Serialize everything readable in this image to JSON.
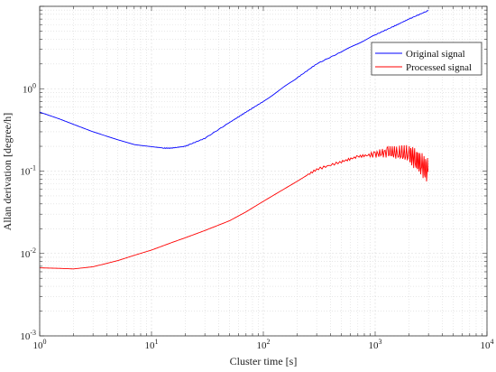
{
  "chart_data": {
    "type": "line",
    "title": "",
    "xlabel": "Cluster time [s]",
    "ylabel": "Allan derivation [degree/h]",
    "xscale": "log",
    "yscale": "log",
    "xlim": [
      1,
      10000
    ],
    "ylim": [
      0.001,
      10
    ],
    "grid": true,
    "legend_position": "top-right",
    "x_ticks": [
      {
        "value": 1,
        "base": "10",
        "exp": "0"
      },
      {
        "value": 10,
        "base": "10",
        "exp": "1"
      },
      {
        "value": 100,
        "base": "10",
        "exp": "2"
      },
      {
        "value": 1000,
        "base": "10",
        "exp": "3"
      },
      {
        "value": 10000,
        "base": "10",
        "exp": "4"
      }
    ],
    "y_ticks": [
      {
        "value": 0.001,
        "base": "10",
        "exp": "-3"
      },
      {
        "value": 0.01,
        "base": "10",
        "exp": "-2"
      },
      {
        "value": 0.1,
        "base": "10",
        "exp": "-1"
      },
      {
        "value": 1,
        "base": "10",
        "exp": "0"
      }
    ],
    "series": [
      {
        "name": "Original signal",
        "color": "#0000ff",
        "x": [
          1,
          1.5,
          2,
          3,
          5,
          7,
          8,
          10,
          13,
          15,
          20,
          30,
          50,
          70,
          100,
          200,
          300,
          500,
          1000,
          1500,
          2000,
          3000
        ],
        "y": [
          0.52,
          0.43,
          0.37,
          0.3,
          0.24,
          0.21,
          0.205,
          0.198,
          0.19,
          0.19,
          0.2,
          0.25,
          0.39,
          0.52,
          0.7,
          1.35,
          2.0,
          2.8,
          4.5,
          5.8,
          7.0,
          8.9
        ]
      },
      {
        "name": "Processed signal",
        "color": "#ff0000",
        "x": [
          1,
          1.5,
          2,
          3,
          5,
          7,
          10,
          15,
          20,
          30,
          50,
          70,
          100,
          200,
          300,
          500,
          700,
          1000,
          1300,
          1600,
          2000,
          2300,
          2600,
          3000
        ],
        "y": [
          0.0067,
          0.0066,
          0.0065,
          0.0069,
          0.0082,
          0.0095,
          0.011,
          0.0135,
          0.0155,
          0.019,
          0.025,
          0.032,
          0.043,
          0.075,
          0.105,
          0.13,
          0.15,
          0.16,
          0.17,
          0.165,
          0.16,
          0.14,
          0.12,
          0.098
        ]
      }
    ]
  }
}
